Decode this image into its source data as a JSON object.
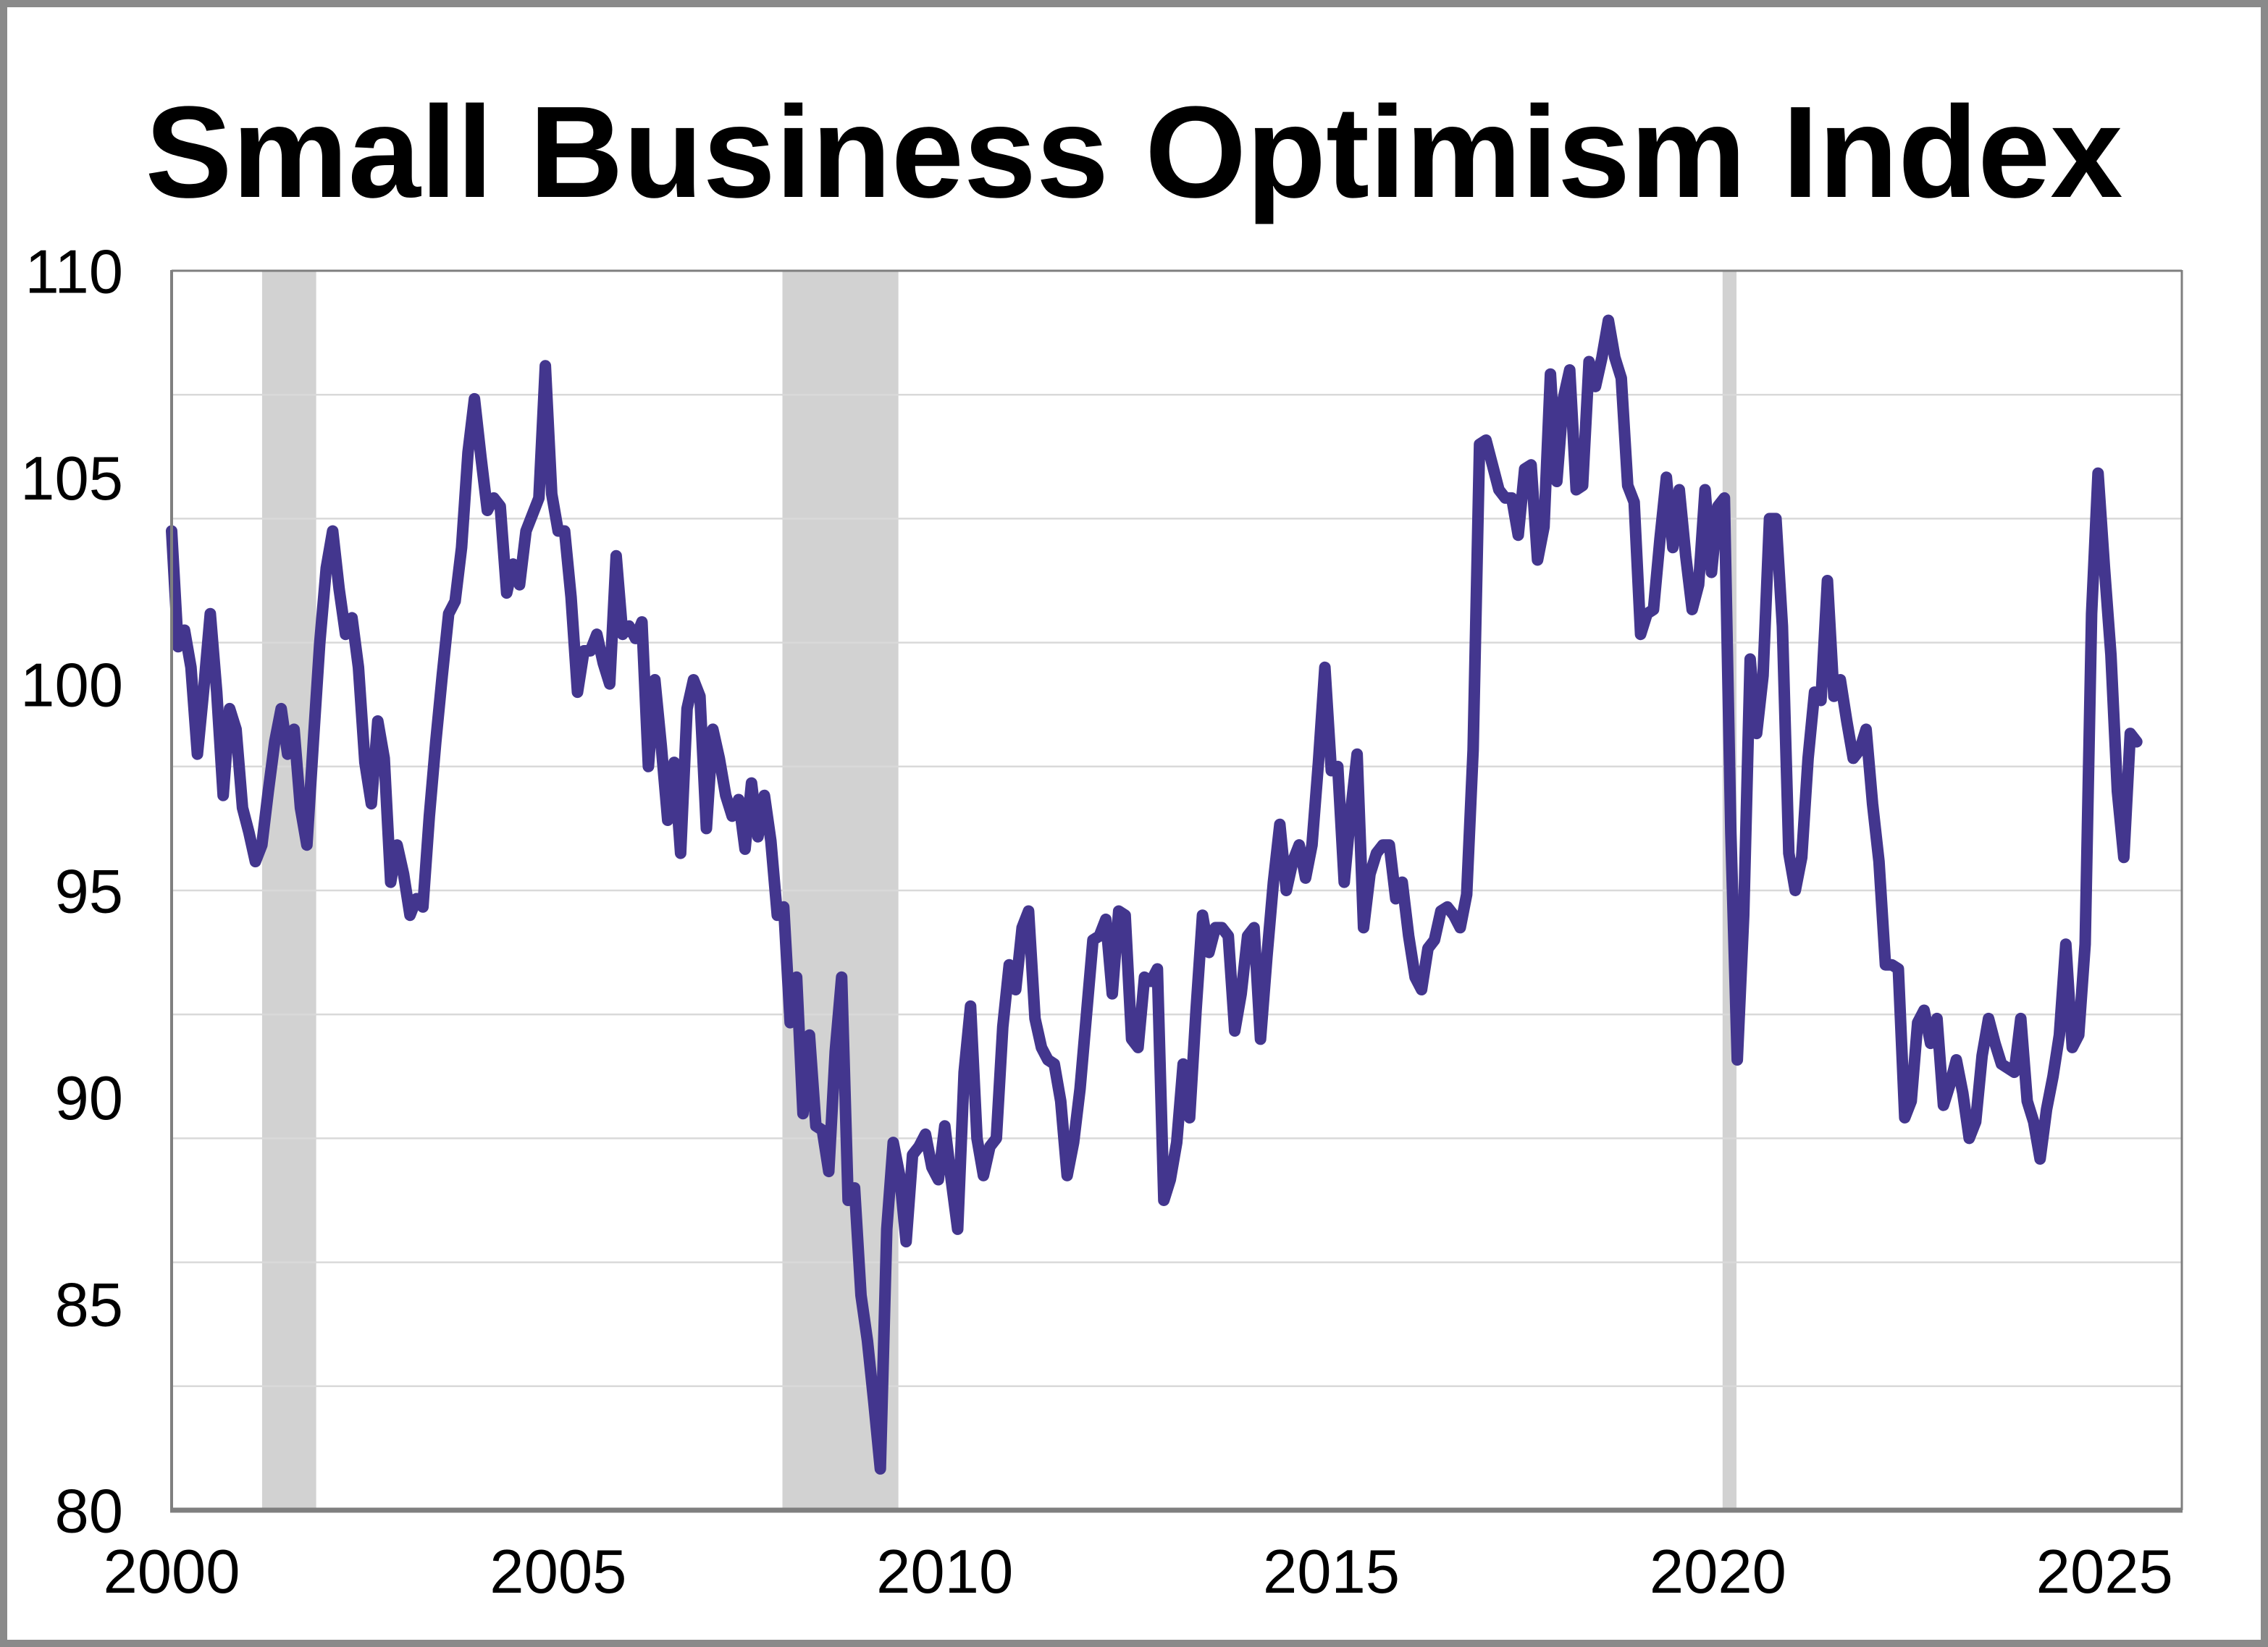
{
  "title": "Small Business Optimism Index",
  "colors": {
    "line": "#43368e",
    "recession_band": "#d2d2d2",
    "gridline": "#d9d9d9",
    "axis": "#7f7f7f",
    "frame": "#8a8a8a",
    "background": "#ffffff",
    "title_color": "#000000"
  },
  "y_axis": {
    "min": 80,
    "max": 110,
    "tick_labels": [
      110,
      105,
      100,
      95,
      90,
      85,
      80
    ],
    "gridline_values": [
      107,
      104,
      101,
      98,
      95,
      92,
      89,
      86,
      83
    ]
  },
  "x_axis": {
    "start_year": 2000,
    "end_year": 2026,
    "tick_labels": [
      2000,
      2005,
      2010,
      2015,
      2020,
      2025
    ]
  },
  "recessions": [
    {
      "start": 2001.17,
      "end": 2001.87
    },
    {
      "start": 2007.9,
      "end": 2009.4
    },
    {
      "start": 2020.06,
      "end": 2020.24
    }
  ],
  "chart_data": {
    "type": "line",
    "title": "Small Business Optimism Index",
    "frequency": "monthly",
    "series_start_year": 2000,
    "series_start_month": 1,
    "ylim": [
      80,
      110
    ],
    "grid": true,
    "legend_position": "none",
    "values": [
      103.7,
      100.9,
      101.3,
      100.4,
      98.3,
      99.9,
      101.7,
      99.8,
      97.3,
      99.4,
      98.9,
      97.0,
      96.4,
      95.7,
      96.1,
      97.4,
      98.6,
      99.4,
      98.3,
      98.9,
      97.0,
      96.1,
      98.6,
      101.0,
      102.8,
      103.7,
      102.3,
      101.2,
      101.6,
      100.4,
      98.1,
      97.1,
      99.1,
      98.2,
      95.2,
      96.1,
      95.4,
      94.4,
      94.8,
      94.6,
      96.8,
      98.6,
      100.2,
      101.7,
      102.0,
      103.3,
      105.6,
      106.9,
      105.5,
      104.2,
      104.5,
      104.3,
      102.2,
      102.9,
      102.4,
      103.7,
      104.1,
      104.5,
      107.7,
      104.6,
      103.7,
      103.7,
      102.1,
      99.8,
      100.8,
      100.8,
      101.2,
      100.5,
      100.0,
      103.1,
      101.2,
      101.4,
      101.1,
      101.5,
      98.0,
      100.1,
      98.5,
      96.7,
      98.1,
      95.9,
      99.4,
      100.1,
      99.7,
      96.5,
      98.9,
      98.2,
      97.3,
      96.8,
      97.2,
      96.0,
      97.6,
      96.3,
      97.3,
      96.2,
      94.4,
      94.6,
      91.8,
      92.9,
      89.6,
      91.5,
      89.3,
      89.2,
      88.2,
      91.1,
      92.9,
      87.5,
      87.8,
      85.2,
      84.1,
      82.6,
      81.0,
      86.8,
      88.9,
      88.1,
      86.5,
      88.6,
      88.8,
      89.1,
      88.3,
      88.0,
      89.3,
      88.0,
      86.8,
      90.6,
      92.2,
      89.0,
      88.1,
      88.8,
      89.0,
      91.7,
      93.2,
      92.6,
      94.1,
      94.5,
      91.9,
      91.2,
      90.9,
      90.8,
      89.9,
      88.1,
      88.9,
      90.2,
      92.0,
      93.8,
      93.9,
      94.3,
      92.5,
      94.5,
      94.4,
      91.4,
      91.2,
      92.9,
      92.8,
      93.1,
      87.5,
      88.0,
      88.9,
      90.8,
      89.5,
      92.1,
      94.4,
      93.5,
      94.1,
      94.1,
      93.9,
      91.6,
      92.5,
      93.9,
      94.1,
      91.4,
      93.4,
      95.2,
      96.6,
      95.0,
      95.7,
      96.1,
      95.3,
      96.1,
      98.1,
      100.4,
      97.9,
      98.0,
      95.2,
      96.9,
      98.3,
      94.1,
      95.4,
      95.9,
      96.1,
      96.1,
      94.8,
      95.2,
      93.9,
      92.9,
      92.6,
      93.6,
      93.8,
      94.5,
      94.6,
      94.4,
      94.1,
      94.9,
      98.4,
      105.8,
      105.9,
      105.3,
      104.7,
      104.5,
      104.5,
      103.6,
      105.2,
      105.3,
      103.0,
      103.8,
      107.5,
      104.9,
      106.9,
      107.6,
      104.7,
      104.8,
      107.8,
      107.2,
      107.9,
      108.8,
      107.9,
      107.4,
      104.8,
      104.4,
      101.2,
      101.7,
      101.8,
      103.5,
      105.0,
      103.3,
      104.7,
      103.1,
      101.8,
      102.4,
      104.7,
      102.7,
      104.3,
      104.5,
      96.4,
      90.9,
      94.4,
      100.6,
      98.8,
      100.2,
      104.0,
      104.0,
      101.4,
      95.9,
      95.0,
      95.8,
      98.2,
      99.8,
      99.6,
      102.5,
      99.7,
      100.1,
      99.1,
      98.2,
      98.4,
      98.9,
      97.1,
      95.7,
      93.2,
      93.2,
      93.1,
      89.5,
      89.9,
      91.8,
      92.1,
      91.3,
      91.9,
      89.8,
      90.3,
      90.9,
      90.1,
      89.0,
      89.4,
      91.0,
      91.9,
      91.3,
      90.8,
      90.7,
      90.6,
      91.9,
      89.9,
      89.4,
      88.5,
      89.7,
      90.5,
      91.5,
      93.7,
      91.2,
      91.5,
      93.7,
      101.7,
      105.1,
      102.8,
      100.7,
      97.4,
      95.8,
      98.8,
      98.6
    ]
  }
}
